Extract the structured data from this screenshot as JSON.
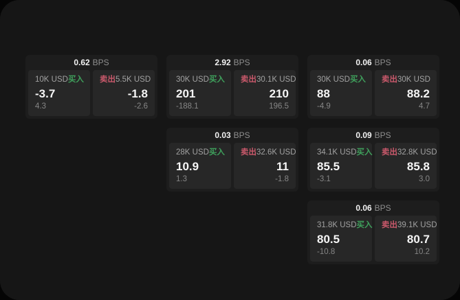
{
  "labels": {
    "buy": "买入",
    "sell": "卖出",
    "unit": "BPS"
  },
  "colors": {
    "page_background": "#161616",
    "card_background": "#1d1d1d",
    "panel_background": "#272727",
    "buy_green": "#3fa05c",
    "sell_red": "#c9596b"
  },
  "cards": [
    {
      "bps": "0.62",
      "buy": {
        "size": "10K USD",
        "value": "-3.7",
        "sub": "4.3"
      },
      "sell": {
        "size": "5.5K USD",
        "value": "-1.8",
        "sub": "-2.6"
      }
    },
    {
      "bps": "2.92",
      "buy": {
        "size": "30K USD",
        "value": "201",
        "sub": "-188.1"
      },
      "sell": {
        "size": "30.1K USD",
        "value": "210",
        "sub": "196.5"
      }
    },
    {
      "bps": "0.06",
      "buy": {
        "size": "30K USD",
        "value": "88",
        "sub": "-4.9"
      },
      "sell": {
        "size": "30K USD",
        "value": "88.2",
        "sub": "4.7"
      }
    },
    {
      "bps": "0.03",
      "buy": {
        "size": "28K USD",
        "value": "10.9",
        "sub": "1.3"
      },
      "sell": {
        "size": "32.6K USD",
        "value": "11",
        "sub": "-1.8"
      }
    },
    {
      "bps": "0.09",
      "buy": {
        "size": "34.1K USD",
        "value": "85.5",
        "sub": "-3.1"
      },
      "sell": {
        "size": "32.8K USD",
        "value": "85.8",
        "sub": "3.0"
      }
    },
    {
      "bps": "0.06",
      "buy": {
        "size": "31.8K USD",
        "value": "80.5",
        "sub": "-10.8"
      },
      "sell": {
        "size": "39.1K USD",
        "value": "80.7",
        "sub": "10.2"
      }
    }
  ]
}
